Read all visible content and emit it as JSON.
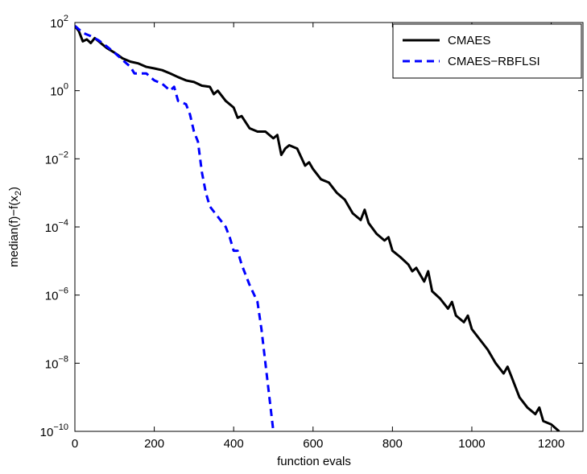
{
  "chart_data": {
    "type": "line",
    "xlabel": "function evals",
    "ylabel": {
      "text": "median(f)−f(x",
      "sub": "2",
      "after": ")"
    },
    "log_y": true,
    "xlim": [
      0,
      1280
    ],
    "ylim": [
      1e-10,
      100
    ],
    "xticks": [
      0,
      200,
      400,
      600,
      800,
      1000,
      1200
    ],
    "yticks": [
      {
        "value": 100,
        "label": "10",
        "exponent": "2"
      },
      {
        "value": 1,
        "label": "10",
        "exponent": "0"
      },
      {
        "value": 0.01,
        "label": "10",
        "exponent": "−2"
      },
      {
        "value": 0.0001,
        "label": "10",
        "exponent": "−4"
      },
      {
        "value": 1e-06,
        "label": "10",
        "exponent": "−6"
      },
      {
        "value": 1e-08,
        "label": "10",
        "exponent": "−8"
      },
      {
        "value": 1e-10,
        "label": "10",
        "exponent": "−10"
      }
    ],
    "legend": "upper right",
    "series": [
      {
        "name": "CMAES",
        "color": "#000000",
        "dash": false,
        "x": [
          0,
          10,
          20,
          30,
          40,
          50,
          60,
          80,
          100,
          120,
          140,
          160,
          180,
          200,
          220,
          240,
          260,
          280,
          300,
          320,
          340,
          350,
          360,
          380,
          400,
          410,
          420,
          440,
          460,
          480,
          500,
          510,
          520,
          530,
          540,
          560,
          580,
          590,
          600,
          620,
          640,
          660,
          680,
          700,
          720,
          730,
          740,
          760,
          780,
          790,
          800,
          820,
          840,
          850,
          860,
          880,
          890,
          900,
          920,
          940,
          950,
          960,
          980,
          990,
          1000,
          1020,
          1040,
          1060,
          1080,
          1090,
          1100,
          1120,
          1140,
          1160,
          1170,
          1180,
          1200,
          1220
        ],
        "values": [
          79,
          56,
          28,
          32,
          25,
          35,
          28,
          18,
          13,
          8.9,
          7.1,
          6.3,
          5,
          4.5,
          4,
          3.2,
          2.5,
          2,
          1.8,
          1.4,
          1.3,
          0.79,
          1,
          0.5,
          0.32,
          0.16,
          0.18,
          0.079,
          0.063,
          0.063,
          0.04,
          0.05,
          0.013,
          0.02,
          0.025,
          0.02,
          0.0063,
          0.0079,
          0.005,
          0.0025,
          0.002,
          0.001,
          0.00063,
          0.00025,
          0.00016,
          0.00032,
          0.00013,
          6.3e-05,
          4e-05,
          5e-05,
          2e-05,
          1.3e-05,
          7.9e-06,
          5e-06,
          6.3e-06,
          2.5e-06,
          5e-06,
          1.3e-06,
          7.9e-07,
          4e-07,
          6.3e-07,
          2.5e-07,
          1.6e-07,
          2.5e-07,
          1e-07,
          5e-08,
          2.5e-08,
          1e-08,
          5e-09,
          7.9e-09,
          4e-09,
          1e-09,
          5e-10,
          3.2e-10,
          5e-10,
          2e-10,
          1.6e-10,
          1e-10
        ]
      },
      {
        "name": "CMAES−RBFLSI",
        "color": "#0000ff",
        "dash": true,
        "x": [
          0,
          20,
          40,
          60,
          80,
          100,
          120,
          140,
          150,
          180,
          200,
          220,
          240,
          250,
          260,
          280,
          290,
          300,
          310,
          320,
          330,
          340,
          360,
          380,
          390,
          400,
          410,
          420,
          440,
          460,
          470,
          480,
          490,
          500
        ],
        "values": [
          80,
          50,
          40,
          30,
          20,
          13,
          8,
          5,
          3.2,
          3.2,
          2,
          1.6,
          1,
          1.3,
          0.5,
          0.4,
          0.2,
          0.063,
          0.032,
          0.004,
          0.001,
          0.0004,
          0.0002,
          0.0001,
          5e-05,
          2e-05,
          2e-05,
          7.9e-06,
          2e-06,
          6.3e-07,
          1e-07,
          1e-08,
          1e-09,
          1e-10
        ]
      }
    ]
  }
}
